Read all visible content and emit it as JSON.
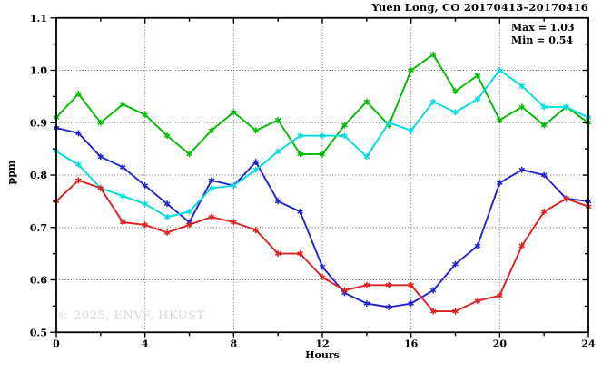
{
  "header": {
    "title": "Yuen Long, CO 20170413–20170416"
  },
  "annotation": {
    "max_label": "Max = 1.03",
    "min_label": "Min = 0.54"
  },
  "watermark": "© 2025, ENVF, HKUST",
  "chart_data": {
    "type": "line",
    "title": "Yuen Long, CO 20170413–20170416",
    "xlabel": "Hours",
    "ylabel": "ppm",
    "xlim": [
      0,
      24
    ],
    "ylim": [
      0.5,
      1.1
    ],
    "x_tick_labels": [
      "0",
      "4",
      "8",
      "12",
      "16",
      "20",
      "24"
    ],
    "y_tick_labels": [
      "0.5",
      "0.6",
      "0.7",
      "0.8",
      "0.9",
      "1.0",
      "1.1"
    ],
    "x_major_ticks": [
      0,
      4,
      8,
      12,
      16,
      20,
      24
    ],
    "x_minor_ticks": [
      2,
      6,
      10,
      14,
      18,
      22
    ],
    "y_major_ticks": [
      0.5,
      0.6,
      0.7,
      0.8,
      0.9,
      1.0,
      1.1
    ],
    "y_minor_ticks": [
      0.55,
      0.65,
      0.75,
      0.85,
      0.95,
      1.05
    ],
    "grid_x": [
      4,
      8,
      12,
      16,
      20
    ],
    "grid_y": [
      0.6,
      0.7,
      0.8,
      0.9,
      1.0
    ],
    "grid_on": true,
    "legend": "none",
    "marker": "asterisk",
    "x": [
      0,
      1,
      2,
      3,
      4,
      5,
      6,
      7,
      8,
      9,
      10,
      11,
      12,
      13,
      14,
      15,
      16,
      17,
      18,
      19,
      20,
      21,
      22,
      23,
      24
    ],
    "series": [
      {
        "name": "series-green",
        "color": "#00BB00",
        "values": [
          0.91,
          0.955,
          0.9,
          0.935,
          0.915,
          0.875,
          0.84,
          0.885,
          0.92,
          0.885,
          0.905,
          0.84,
          0.84,
          0.895,
          0.94,
          0.895,
          1.0,
          1.03,
          0.96,
          0.99,
          0.905,
          0.93,
          0.895,
          0.93,
          0.9
        ]
      },
      {
        "name": "series-blue",
        "color": "#2424CC",
        "values": [
          0.89,
          0.88,
          0.835,
          0.815,
          0.78,
          0.745,
          0.71,
          0.79,
          0.78,
          0.825,
          0.75,
          0.73,
          0.625,
          0.575,
          0.555,
          0.548,
          0.555,
          0.58,
          0.63,
          0.665,
          0.785,
          0.81,
          0.8,
          0.755,
          0.75
        ]
      },
      {
        "name": "series-cyan",
        "color": "#00DCDC",
        "values": [
          0.845,
          0.82,
          0.775,
          0.76,
          0.745,
          0.72,
          0.73,
          0.775,
          0.78,
          0.81,
          0.845,
          0.875,
          0.875,
          0.875,
          0.835,
          0.9,
          0.885,
          0.94,
          0.92,
          0.945,
          1.0,
          0.97,
          0.93,
          0.93,
          0.91
        ]
      },
      {
        "name": "series-red",
        "color": "#DD2020",
        "values": [
          0.75,
          0.79,
          0.775,
          0.71,
          0.705,
          0.69,
          0.705,
          0.72,
          0.71,
          0.695,
          0.65,
          0.65,
          0.605,
          0.58,
          0.59,
          0.59,
          0.59,
          0.54,
          0.54,
          0.56,
          0.57,
          0.665,
          0.73,
          0.755,
          0.74
        ]
      }
    ]
  }
}
